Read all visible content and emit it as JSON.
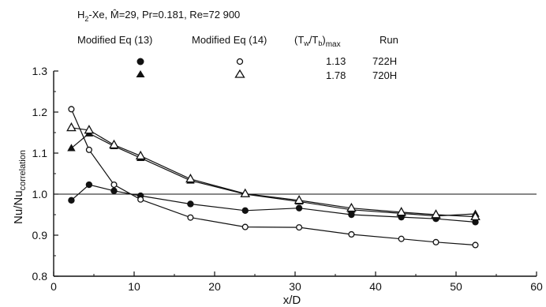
{
  "header": {
    "line1": "H₂-Xe, M̂=29, Pr=0.181, Re=72 900",
    "col1": "Modified Eq (13)",
    "col2": "Modified Eq (14)",
    "col3": "(Tᵥ/Tᵦ)ₘₐₓ",
    "col3_display": "(Tw/Tb)max",
    "col4": "Run",
    "row1_ratio": "1.13",
    "row1_run": "722H",
    "row2_ratio": "1.78",
    "row2_run": "720H"
  },
  "chart_data": {
    "type": "line",
    "xlabel": "x/D",
    "ylabel": "Nu/Nu correlation",
    "xlim": [
      0,
      60
    ],
    "ylim": [
      0.8,
      1.3
    ],
    "x_ticks": [
      "0",
      "10",
      "20",
      "30",
      "40",
      "50",
      "60"
    ],
    "y_ticks": [
      "0.8",
      "0.9",
      "1.0",
      "1.1",
      "1.2",
      "1.3"
    ],
    "reference_line": 1.0,
    "grid": false,
    "series": [
      {
        "name": "722H Modified Eq (13)",
        "marker": "filled-circle",
        "x": [
          2.2,
          4.4,
          7.5,
          10.8,
          17.0,
          23.8,
          30.5,
          37.0,
          43.2,
          47.5,
          52.4
        ],
        "y": [
          0.985,
          1.023,
          1.008,
          0.996,
          0.976,
          0.96,
          0.966,
          0.95,
          0.944,
          0.94,
          0.932
        ]
      },
      {
        "name": "722H Modified Eq (14)",
        "marker": "open-circle",
        "x": [
          2.2,
          4.4,
          7.5,
          10.8,
          17.0,
          23.8,
          30.5,
          37.0,
          43.2,
          47.5,
          52.4
        ],
        "y": [
          1.207,
          1.108,
          1.023,
          0.987,
          0.943,
          0.92,
          0.919,
          0.902,
          0.891,
          0.883,
          0.876
        ]
      },
      {
        "name": "720H Modified Eq (13)",
        "marker": "filled-triangle",
        "x": [
          2.2,
          4.4,
          7.5,
          10.8,
          17.0,
          23.8,
          30.5,
          37.0,
          43.2,
          47.5,
          52.4
        ],
        "y": [
          1.112,
          1.148,
          1.117,
          1.088,
          1.033,
          1.0,
          0.982,
          0.962,
          0.953,
          0.947,
          0.952
        ]
      },
      {
        "name": "720H Modified Eq (14)",
        "marker": "open-triangle",
        "x": [
          2.2,
          4.4,
          7.5,
          10.8,
          17.0,
          23.8,
          30.5,
          37.0,
          43.2,
          47.5,
          52.4
        ],
        "y": [
          1.162,
          1.156,
          1.12,
          1.093,
          1.037,
          1.001,
          0.985,
          0.966,
          0.956,
          0.95,
          0.945
        ]
      }
    ]
  }
}
